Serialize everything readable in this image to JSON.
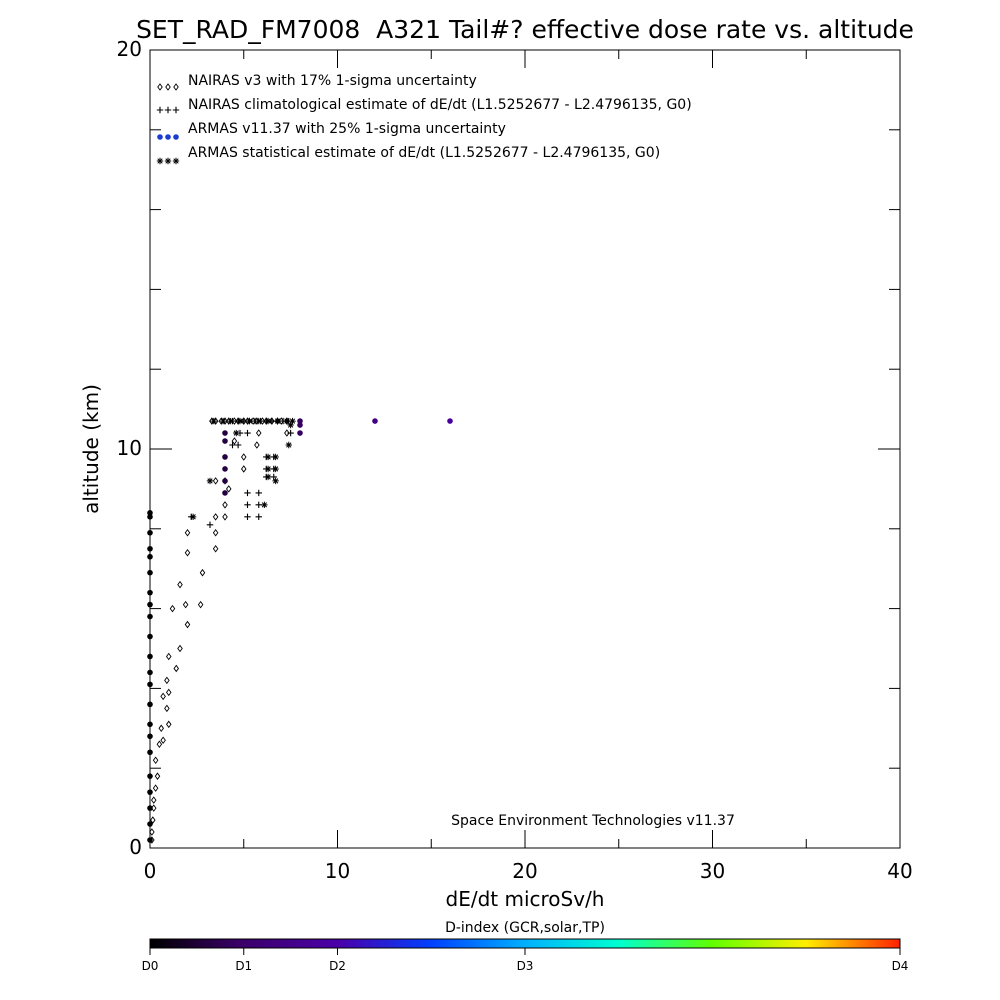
{
  "chart_data": {
    "type": "scatter",
    "title": "SET_RAD_FM7008  A321 Tail#? effective dose rate vs. altitude",
    "xlabel": "dE/dt microSv/h",
    "ylabel": "altitude (km)",
    "xlim": [
      0,
      40
    ],
    "ylim": [
      0,
      20
    ],
    "x_ticks": [
      "0",
      "10",
      "20",
      "30",
      "40"
    ],
    "y_ticks": [
      "0",
      "10",
      "20"
    ],
    "legend_position": "top-left",
    "legend": [
      {
        "marker": "◇◇◇",
        "label": "NAIRAS v3 with 17% 1-sigma uncertainty"
      },
      {
        "marker": "+++",
        "label": "NAIRAS climatological estimate of dE/dt (L1.5252677 - L2.4796135, G0)"
      },
      {
        "marker": "●●●",
        "label": "ARMAS v11.37 with 25% 1-sigma uncertainty"
      },
      {
        "marker": "***",
        "label": "ARMAS statistical estimate of dE/dt (L1.5252677 - L2.4796135, G0)"
      }
    ],
    "annotation": "Space Environment Technologies v11.37",
    "colorbar": {
      "label": "D-index (GCR,solar,TP)",
      "ticks": [
        {
          "label": "D0",
          "value": 0
        },
        {
          "label": "D1",
          "value": 0.25
        },
        {
          "label": "D2",
          "value": 0.5
        },
        {
          "label": "D3",
          "value": 1.0
        },
        {
          "label": "D4",
          "value": 2.0
        }
      ],
      "range": [
        0,
        2
      ]
    },
    "series": [
      {
        "name": "NAIRAS v3 with 17% 1-sigma uncertainty",
        "marker": "diamond",
        "points": [
          [
            0.1,
            0.2
          ],
          [
            0.1,
            0.4
          ],
          [
            0.15,
            0.7
          ],
          [
            0.2,
            1.0
          ],
          [
            0.2,
            1.2
          ],
          [
            0.3,
            1.5
          ],
          [
            0.4,
            1.8
          ],
          [
            0.3,
            2.2
          ],
          [
            0.5,
            2.6
          ],
          [
            0.7,
            2.7
          ],
          [
            0.6,
            3.0
          ],
          [
            1.0,
            3.1
          ],
          [
            0.9,
            3.5
          ],
          [
            0.7,
            3.8
          ],
          [
            1.0,
            3.9
          ],
          [
            0.9,
            4.2
          ],
          [
            1.4,
            4.5
          ],
          [
            1.0,
            4.8
          ],
          [
            1.6,
            5.0
          ],
          [
            2.0,
            5.6
          ],
          [
            1.9,
            6.1
          ],
          [
            1.2,
            6.0
          ],
          [
            2.7,
            6.1
          ],
          [
            1.6,
            6.6
          ],
          [
            2.8,
            6.9
          ],
          [
            2.0,
            7.4
          ],
          [
            3.5,
            7.5
          ],
          [
            2.0,
            7.9
          ],
          [
            3.5,
            7.9
          ],
          [
            3.5,
            8.3
          ],
          [
            4.0,
            8.3
          ],
          [
            4.0,
            8.6
          ],
          [
            4.2,
            9.0
          ],
          [
            3.5,
            9.2
          ],
          [
            4.0,
            9.2
          ],
          [
            5.0,
            9.5
          ],
          [
            5.0,
            9.8
          ],
          [
            4.5,
            10.2
          ],
          [
            5.7,
            10.1
          ],
          [
            5.8,
            10.4
          ],
          [
            7.3,
            10.4
          ],
          [
            3.3,
            10.7
          ],
          [
            3.5,
            10.7
          ],
          [
            3.8,
            10.7
          ],
          [
            4.0,
            10.7
          ],
          [
            4.2,
            10.7
          ],
          [
            4.5,
            10.7
          ],
          [
            4.7,
            10.7
          ],
          [
            5.0,
            10.7
          ],
          [
            5.2,
            10.7
          ],
          [
            5.5,
            10.7
          ],
          [
            5.7,
            10.7
          ],
          [
            6.0,
            10.7
          ],
          [
            6.2,
            10.7
          ],
          [
            6.5,
            10.7
          ],
          [
            6.8,
            10.7
          ],
          [
            7.0,
            10.7
          ],
          [
            7.3,
            10.7
          ]
        ]
      },
      {
        "name": "NAIRAS climatological estimate of dE/dt (L1.5252677 - L2.4796135, G0)",
        "marker": "plus",
        "points": [
          [
            2.2,
            8.3
          ],
          [
            3.2,
            8.1
          ],
          [
            5.2,
            8.3
          ],
          [
            5.8,
            8.3
          ],
          [
            5.2,
            8.6
          ],
          [
            5.8,
            8.6
          ],
          [
            5.2,
            8.9
          ],
          [
            5.8,
            8.9
          ],
          [
            6.2,
            9.3
          ],
          [
            6.6,
            9.3
          ],
          [
            6.2,
            9.5
          ],
          [
            6.6,
            9.5
          ],
          [
            6.2,
            9.8
          ],
          [
            6.6,
            9.8
          ],
          [
            4.4,
            10.1
          ],
          [
            4.7,
            10.1
          ],
          [
            4.8,
            10.4
          ],
          [
            5.2,
            10.4
          ],
          [
            7.5,
            10.4
          ],
          [
            4.4,
            10.7
          ],
          [
            4.7,
            10.7
          ],
          [
            5.0,
            10.7
          ],
          [
            5.3,
            10.7
          ],
          [
            5.6,
            10.7
          ],
          [
            5.9,
            10.7
          ],
          [
            6.2,
            10.7
          ],
          [
            6.5,
            10.7
          ],
          [
            6.8,
            10.7
          ],
          [
            7.1,
            10.7
          ],
          [
            7.4,
            10.7
          ]
        ]
      },
      {
        "name": "ARMAS v11.37 with 25% 1-sigma uncertainty",
        "marker": "filled-circle",
        "points": [
          {
            "x": 0.0,
            "y": 0.2,
            "d": 0.0
          },
          {
            "x": 0.0,
            "y": 0.6,
            "d": 0.0
          },
          {
            "x": 0.0,
            "y": 1.0,
            "d": 0.0
          },
          {
            "x": 0.0,
            "y": 1.4,
            "d": 0.0
          },
          {
            "x": 0.0,
            "y": 1.8,
            "d": 0.0
          },
          {
            "x": 0.0,
            "y": 2.4,
            "d": 0.0
          },
          {
            "x": 0.0,
            "y": 2.8,
            "d": 0.0
          },
          {
            "x": 0.0,
            "y": 3.1,
            "d": 0.0
          },
          {
            "x": 0.0,
            "y": 3.6,
            "d": 0.0
          },
          {
            "x": 0.0,
            "y": 4.1,
            "d": 0.0
          },
          {
            "x": 0.0,
            "y": 4.4,
            "d": 0.0
          },
          {
            "x": 0.0,
            "y": 4.8,
            "d": 0.0
          },
          {
            "x": 0.0,
            "y": 5.3,
            "d": 0.0
          },
          {
            "x": 0.0,
            "y": 5.8,
            "d": 0.0
          },
          {
            "x": 0.0,
            "y": 6.1,
            "d": 0.0
          },
          {
            "x": 0.0,
            "y": 6.4,
            "d": 0.0
          },
          {
            "x": 0.0,
            "y": 6.9,
            "d": 0.0
          },
          {
            "x": 0.0,
            "y": 7.3,
            "d": 0.0
          },
          {
            "x": 0.0,
            "y": 7.5,
            "d": 0.0
          },
          {
            "x": 0.0,
            "y": 7.9,
            "d": 0.0
          },
          {
            "x": 0.0,
            "y": 8.3,
            "d": 0.0
          },
          {
            "x": 0.0,
            "y": 8.4,
            "d": 0.0
          },
          {
            "x": 4.0,
            "y": 8.9,
            "d": 0.15
          },
          {
            "x": 4.0,
            "y": 9.2,
            "d": 0.15
          },
          {
            "x": 4.0,
            "y": 9.5,
            "d": 0.15
          },
          {
            "x": 4.0,
            "y": 9.8,
            "d": 0.15
          },
          {
            "x": 4.0,
            "y": 10.2,
            "d": 0.15
          },
          {
            "x": 4.0,
            "y": 10.4,
            "d": 0.15
          },
          {
            "x": 8.0,
            "y": 10.4,
            "d": 0.22
          },
          {
            "x": 8.0,
            "y": 10.6,
            "d": 0.22
          },
          {
            "x": 8.0,
            "y": 10.7,
            "d": 0.22
          },
          {
            "x": 12.0,
            "y": 10.7,
            "d": 0.35
          },
          {
            "x": 16.0,
            "y": 10.7,
            "d": 0.45
          }
        ]
      },
      {
        "name": "ARMAS statistical estimate of dE/dt (L1.5252677 - L2.4796135, G0)",
        "marker": "asterisk",
        "points": [
          [
            2.3,
            8.3
          ],
          [
            6.1,
            8.6
          ],
          [
            3.2,
            9.2
          ],
          [
            6.3,
            9.3
          ],
          [
            6.7,
            9.2
          ],
          [
            6.3,
            9.5
          ],
          [
            6.7,
            9.5
          ],
          [
            6.3,
            9.8
          ],
          [
            6.7,
            9.8
          ],
          [
            7.4,
            10.1
          ],
          [
            4.6,
            10.4
          ],
          [
            7.5,
            10.6
          ],
          [
            3.4,
            10.7
          ],
          [
            3.9,
            10.7
          ],
          [
            4.3,
            10.7
          ],
          [
            4.8,
            10.7
          ],
          [
            5.3,
            10.7
          ],
          [
            5.8,
            10.7
          ],
          [
            6.3,
            10.7
          ],
          [
            6.8,
            10.7
          ],
          [
            7.3,
            10.7
          ],
          [
            7.6,
            10.7
          ]
        ]
      }
    ]
  }
}
